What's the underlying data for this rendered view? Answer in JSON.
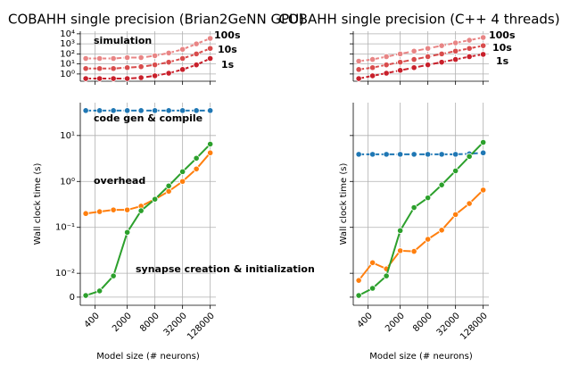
{
  "chart_data": [
    {
      "type": "line",
      "title": "COBAHH single precision (Brian2GeNN GPU)",
      "annotation": "simulation",
      "annotation_color": "#d62728",
      "xscale": "log",
      "yscale": "log",
      "grid": true,
      "xtick_labels": false,
      "ytick_labels": true,
      "x": [
        250,
        500,
        1000,
        2000,
        4000,
        8000,
        16000,
        32000,
        64000,
        128000
      ],
      "xlim": [
        190,
        170000
      ],
      "xticks": [
        400,
        2000,
        8000,
        32000,
        128000
      ],
      "ylim": [
        0.19,
        18000
      ],
      "yticks": [
        {
          "value": 1,
          "label": "10⁰"
        },
        {
          "value": 10,
          "label": "10¹"
        },
        {
          "value": 100,
          "label": "10²"
        },
        {
          "value": 1000,
          "label": "10³"
        },
        {
          "value": 10000,
          "label": "10⁴"
        }
      ],
      "series": [
        {
          "name": "100s",
          "color": "#e88585",
          "linestyle": "dashed",
          "values": [
            35,
            35,
            35,
            43,
            43,
            66,
            123,
            283,
            1000,
            3500
          ]
        },
        {
          "name": "10s",
          "color": "#d84c4c",
          "linestyle": "dashed",
          "values": [
            3.5,
            3.5,
            3.5,
            4.3,
            5.3,
            8.1,
            15,
            35,
            100,
            350
          ]
        },
        {
          "name": "1s",
          "color": "#c8202b",
          "linestyle": "dashed",
          "values": [
            0.35,
            0.35,
            0.35,
            0.35,
            0.43,
            0.66,
            1.2,
            2.8,
            8.1,
            35
          ]
        }
      ]
    },
    {
      "type": "line",
      "xlabel": "Model size (# neurons)",
      "ylabel": "Wall clock time (s)",
      "xscale": "log",
      "yscale": "symlog",
      "linthresh": 0.01,
      "linscale": 0.52,
      "grid": true,
      "xtick_labels": true,
      "ytick_labels": true,
      "x": [
        250,
        500,
        1000,
        2000,
        4000,
        8000,
        16000,
        32000,
        64000,
        128000
      ],
      "xlim": [
        190,
        170000
      ],
      "xticks": [
        400,
        2000,
        8000,
        32000,
        128000
      ],
      "ylim": [
        -0.0034,
        52
      ],
      "yticks": [
        0,
        {
          "value": 0.01,
          "label": "10⁻²"
        },
        {
          "value": 0.1,
          "label": "10⁻¹"
        },
        {
          "value": 1,
          "label": "10⁰"
        },
        {
          "value": 10,
          "label": "10¹"
        }
      ],
      "series": [
        {
          "name": "code gen & compile",
          "color": "#1f77b4",
          "linestyle": "dashed",
          "values": [
            35,
            35,
            35,
            35,
            35,
            35,
            35,
            35,
            35,
            35
          ]
        },
        {
          "name": "overhead",
          "color": "#ff7f0e",
          "linestyle": "solid",
          "values": [
            0.2,
            0.22,
            0.24,
            0.24,
            0.29,
            0.41,
            0.61,
            1.0,
            1.87,
            4.2
          ]
        },
        {
          "name": "synapse creation & initialization",
          "color": "#2ca02c",
          "linestyle": "solid",
          "values": [
            0.0007,
            0.0026,
            0.0089,
            0.078,
            0.23,
            0.41,
            0.8,
            1.63,
            3.2,
            6.5
          ]
        }
      ]
    },
    {
      "type": "line",
      "title": "COBAHH single precision (C++ 4 threads)",
      "xscale": "log",
      "yscale": "log",
      "grid": true,
      "xtick_labels": false,
      "ytick_labels": false,
      "x": [
        250,
        500,
        1000,
        2000,
        4000,
        8000,
        16000,
        32000,
        64000,
        128000
      ],
      "xlim": [
        190,
        170000
      ],
      "xticks": [
        400,
        2000,
        8000,
        32000,
        128000
      ],
      "ylim": [
        0.19,
        18000
      ],
      "yticks": [
        1,
        10,
        100,
        1000,
        10000
      ],
      "series": [
        {
          "name": "100s",
          "color": "#e88585",
          "linestyle": "dashed",
          "values": [
            19,
            28,
            53,
            100,
            190,
            350,
            660,
            1240,
            2300,
            4300
          ]
        },
        {
          "name": "10s",
          "color": "#d84c4c",
          "linestyle": "dashed",
          "values": [
            2.8,
            4.3,
            8.1,
            15,
            28,
            53,
            100,
            190,
            350,
            660
          ]
        },
        {
          "name": "1s",
          "color": "#c8202b",
          "linestyle": "dashed",
          "values": [
            0.35,
            0.66,
            1.2,
            2.3,
            4.3,
            8.1,
            15,
            28,
            53,
            90
          ]
        }
      ]
    },
    {
      "type": "line",
      "xlabel": "Model size (# neurons)",
      "ylabel": "Wall clock time (s)",
      "xscale": "log",
      "yscale": "symlog",
      "linthresh": 0.01,
      "linscale": 0.52,
      "grid": true,
      "xtick_labels": true,
      "ytick_labels": false,
      "x": [
        250,
        500,
        1000,
        2000,
        4000,
        8000,
        16000,
        32000,
        64000,
        128000
      ],
      "xlim": [
        190,
        170000
      ],
      "xticks": [
        400,
        2000,
        8000,
        32000,
        128000
      ],
      "ylim": [
        -0.0034,
        52
      ],
      "yticks": [
        0,
        0.01,
        0.1,
        1,
        10
      ],
      "series": [
        {
          "color": "#1f77b4",
          "linestyle": "dashed",
          "values": [
            3.9,
            3.9,
            3.9,
            3.9,
            3.9,
            3.9,
            3.9,
            3.9,
            4.0,
            4.2
          ]
        },
        {
          "color": "#ff7f0e",
          "linestyle": "solid",
          "values": [
            0.007,
            0.017,
            0.0125,
            0.031,
            0.03,
            0.055,
            0.087,
            0.19,
            0.33,
            0.65
          ]
        },
        {
          "color": "#2ca02c",
          "linestyle": "solid",
          "values": [
            0.0007,
            0.0037,
            0.0089,
            0.085,
            0.27,
            0.44,
            0.84,
            1.7,
            3.5,
            7.1
          ]
        }
      ]
    }
  ]
}
